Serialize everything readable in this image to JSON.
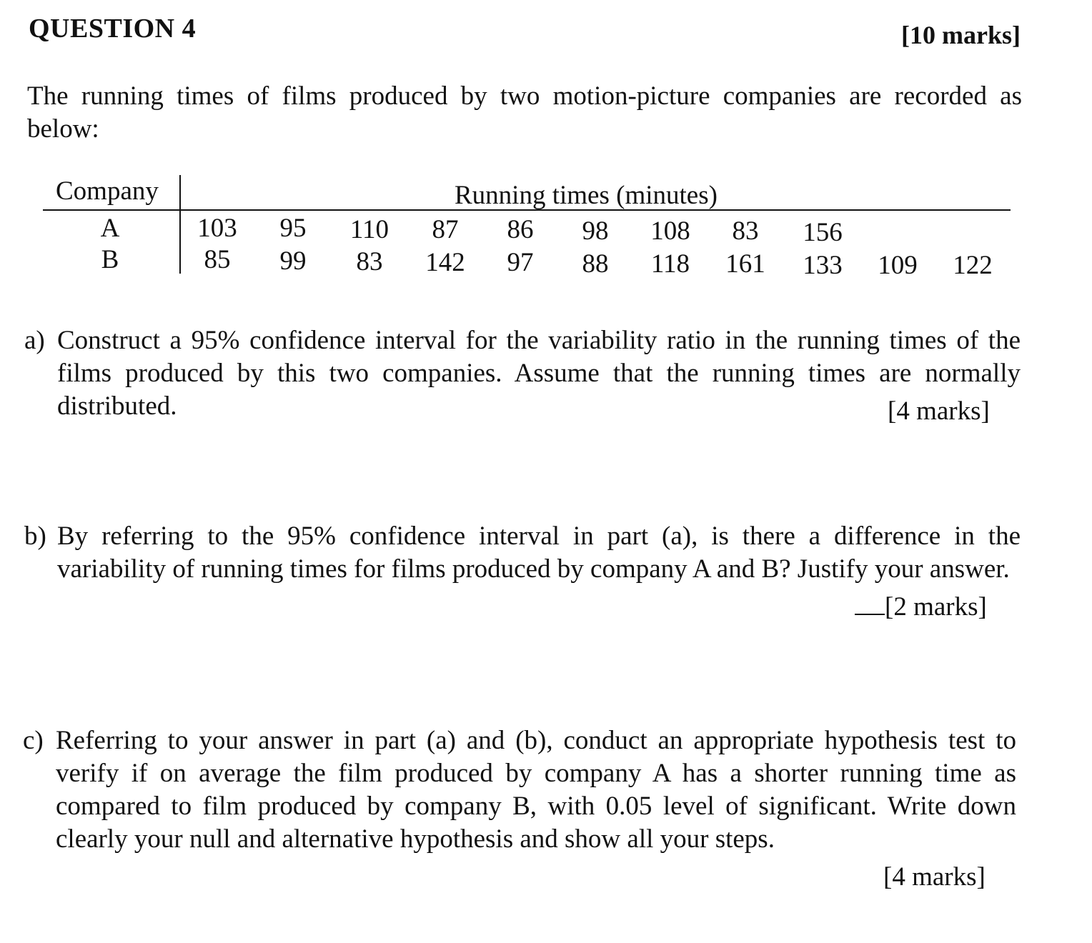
{
  "question": {
    "title": "QUESTION 4",
    "marks": "[10 marks]",
    "intro": "The running times of films produced by two motion-picture companies are recorded as below:"
  },
  "table": {
    "header_company": "Company",
    "header_times": "Running times (minutes)",
    "rows": [
      {
        "label": "A",
        "values": [
          "103",
          "95",
          "110",
          "87",
          "86",
          "98",
          "108",
          "83",
          "156"
        ]
      },
      {
        "label": "B",
        "values": [
          "85",
          "99",
          "83",
          "142",
          "97",
          "88",
          "118",
          "161",
          "133",
          "109",
          "122"
        ]
      }
    ]
  },
  "parts": {
    "a": {
      "letter": "a)",
      "text": "Construct a 95% confidence interval for the variability ratio in the running times of the films produced by this two companies. Assume that the running times are normally distributed.",
      "marks": "[4 marks]"
    },
    "b": {
      "letter": "b)",
      "text": "By referring to the 95% confidence interval in part (a), is there a difference in the variability of running times for films produced by company A and B? Justify your answer.",
      "marks": "[2 marks]"
    },
    "c": {
      "letter": "c)",
      "text": "Referring to your answer in part (a) and (b), conduct an appropriate hypothesis test to verify if on average the film produced by company A has a shorter running time as compared to film produced by company B, with 0.05 level of significant. Write down clearly your null and alternative hypothesis and show all your steps.",
      "marks": "[4 marks]"
    }
  }
}
